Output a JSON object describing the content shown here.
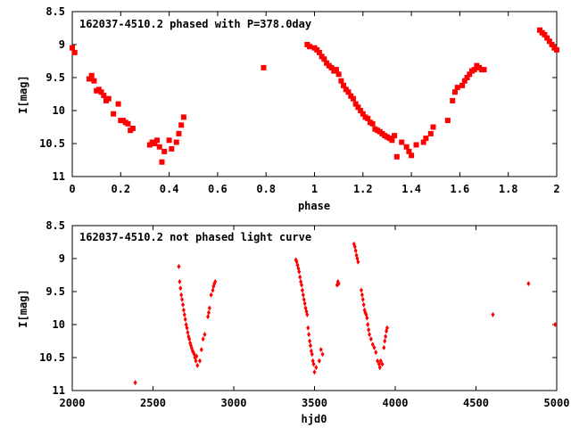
{
  "chart_data": [
    {
      "type": "scatter",
      "title": "162037-4510.2 phased with P=378.0day",
      "xlabel": "phase",
      "ylabel": "I[mag]",
      "xlim": [
        0,
        2
      ],
      "ylim": [
        8.5,
        11
      ],
      "y_inverted": true,
      "grid": false,
      "marker": "filled square",
      "color": "#ff0000",
      "xticks": [
        "0",
        "0.2",
        "0.4",
        "0.6",
        "0.8",
        "1",
        "1.2",
        "1.4",
        "1.6",
        "1.8",
        "2"
      ],
      "yticks": [
        "8.5",
        "9",
        "9.5",
        "10",
        "10.5",
        "11"
      ],
      "series": [
        {
          "x": [
            0.0,
            0.01,
            0.07,
            0.08,
            0.09,
            0.1,
            0.11,
            0.12,
            0.13,
            0.14,
            0.15,
            0.17,
            0.19,
            0.2,
            0.21,
            0.22,
            0.23,
            0.24,
            0.25,
            0.32,
            0.33,
            0.34,
            0.35,
            0.36,
            0.37,
            0.38,
            0.4,
            0.41,
            0.43,
            0.44,
            0.45,
            0.46,
            0.79,
            0.97,
            0.98,
            1.0,
            1.01,
            1.02,
            1.03,
            1.04,
            1.05,
            1.06,
            1.07,
            1.08,
            1.09,
            1.1,
            1.11,
            1.12,
            1.13,
            1.14,
            1.15,
            1.16,
            1.17,
            1.18,
            1.19,
            1.2,
            1.21,
            1.22,
            1.23,
            1.24,
            1.25,
            1.26,
            1.27,
            1.28,
            1.29,
            1.3,
            1.31,
            1.32,
            1.33,
            1.34,
            1.36,
            1.38,
            1.39,
            1.4,
            1.42,
            1.45,
            1.46,
            1.48,
            1.49,
            1.55,
            1.57,
            1.58,
            1.59,
            1.61,
            1.62,
            1.63,
            1.64,
            1.65,
            1.66,
            1.67,
            1.68,
            1.69,
            1.7,
            1.93,
            1.94,
            1.95,
            1.96,
            1.97,
            1.98,
            1.99,
            2.0
          ],
          "y": [
            9.05,
            9.12,
            9.52,
            9.47,
            9.55,
            9.7,
            9.68,
            9.72,
            9.77,
            9.85,
            9.82,
            10.05,
            9.9,
            10.15,
            10.15,
            10.18,
            10.2,
            10.3,
            10.27,
            10.52,
            10.48,
            10.5,
            10.45,
            10.55,
            10.78,
            10.62,
            10.45,
            10.58,
            10.48,
            10.35,
            10.22,
            10.1,
            9.35,
            9.0,
            9.03,
            9.05,
            9.08,
            9.12,
            9.18,
            9.22,
            9.28,
            9.32,
            9.35,
            9.4,
            9.38,
            9.45,
            9.55,
            9.62,
            9.68,
            9.72,
            9.78,
            9.82,
            9.9,
            9.95,
            10.0,
            10.05,
            10.1,
            10.12,
            10.18,
            10.2,
            10.28,
            10.3,
            10.32,
            10.35,
            10.38,
            10.4,
            10.42,
            10.45,
            10.38,
            10.7,
            10.48,
            10.55,
            10.62,
            10.68,
            10.52,
            10.48,
            10.42,
            10.35,
            10.25,
            10.15,
            9.85,
            9.72,
            9.65,
            9.62,
            9.55,
            9.5,
            9.45,
            9.4,
            9.38,
            9.32,
            9.35,
            9.38,
            9.38,
            8.78,
            8.82,
            8.85,
            8.9,
            8.95,
            9.0,
            9.05,
            9.08
          ]
        }
      ]
    },
    {
      "type": "scatter",
      "title": "162037-4510.2 not phased light curve",
      "xlabel": "hjd0",
      "ylabel": "I[mag]",
      "xlim": [
        2000,
        5000
      ],
      "ylim": [
        8.5,
        11
      ],
      "y_inverted": true,
      "grid": false,
      "marker": "small diamond",
      "color": "#ff0000",
      "xticks": [
        "2000",
        "2500",
        "3000",
        "3500",
        "4000",
        "4500",
        "5000"
      ],
      "yticks": [
        "8.5",
        "9",
        "9.5",
        "10",
        "10.5",
        "11"
      ],
      "series": [
        {
          "x": [
            2390,
            2660,
            2665,
            2670,
            2675,
            2680,
            2685,
            2690,
            2695,
            2700,
            2705,
            2710,
            2715,
            2720,
            2725,
            2730,
            2735,
            2740,
            2745,
            2750,
            2755,
            2760,
            2765,
            2770,
            2775,
            2790,
            2800,
            2810,
            2820,
            2840,
            2845,
            2850,
            2860,
            2870,
            2875,
            2880,
            2885,
            3385,
            3390,
            3395,
            3400,
            3405,
            3410,
            3415,
            3420,
            3425,
            3430,
            3435,
            3440,
            3445,
            3450,
            3455,
            3460,
            3465,
            3470,
            3475,
            3480,
            3485,
            3490,
            3495,
            3500,
            3510,
            3530,
            3540,
            3550,
            3640,
            3645,
            3650,
            3745,
            3750,
            3755,
            3760,
            3765,
            3770,
            3790,
            3795,
            3800,
            3805,
            3810,
            3815,
            3820,
            3825,
            3830,
            3835,
            3840,
            3850,
            3860,
            3870,
            3880,
            3890,
            3900,
            3905,
            3910,
            3920,
            3930,
            3935,
            3940,
            3945,
            3950,
            4605,
            4825,
            4990
          ],
          "y": [
            10.88,
            9.12,
            9.35,
            9.45,
            9.55,
            9.62,
            9.7,
            9.78,
            9.85,
            9.92,
            10.0,
            10.05,
            10.12,
            10.18,
            10.22,
            10.28,
            10.32,
            10.36,
            10.4,
            10.42,
            10.45,
            10.5,
            10.55,
            10.48,
            10.62,
            10.55,
            10.38,
            10.22,
            10.15,
            9.88,
            9.82,
            9.75,
            9.55,
            9.48,
            9.42,
            9.38,
            9.35,
            9.02,
            9.05,
            9.1,
            9.15,
            9.2,
            9.28,
            9.35,
            9.4,
            9.48,
            9.55,
            9.62,
            9.68,
            9.75,
            9.8,
            9.85,
            10.05,
            10.15,
            10.25,
            10.32,
            10.4,
            10.45,
            10.55,
            10.6,
            10.72,
            10.65,
            10.55,
            10.38,
            10.45,
            9.4,
            9.35,
            9.38,
            8.78,
            8.82,
            8.88,
            8.95,
            9.0,
            9.05,
            9.48,
            9.55,
            9.62,
            9.7,
            9.78,
            9.82,
            9.85,
            9.9,
            10.0,
            10.08,
            10.15,
            10.22,
            10.3,
            10.35,
            10.42,
            10.55,
            10.6,
            10.65,
            10.55,
            10.6,
            10.35,
            10.25,
            10.18,
            10.1,
            10.05,
            9.85,
            9.38,
            10.0
          ]
        }
      ]
    }
  ]
}
